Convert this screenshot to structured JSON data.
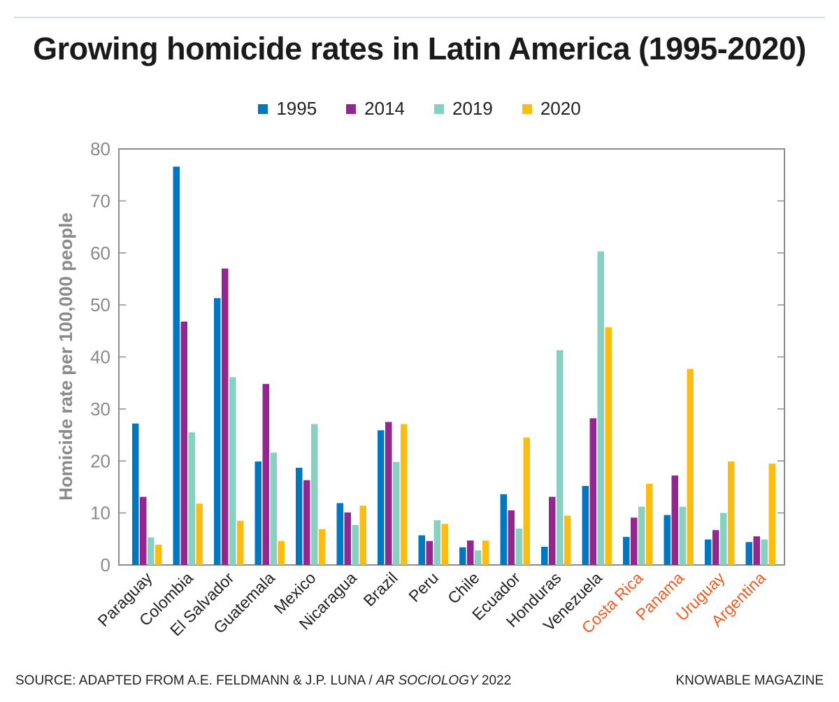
{
  "title": "Growing homicide rates in Latin America (1995-2020)",
  "footer": {
    "source_prefix": "SOURCE: ADAPTED FROM A.E. FELDMANN & J.P. LUNA / ",
    "source_journal": "AR SOCIOLOGY",
    "source_year": " 2022",
    "credit": "KNOWABLE MAGAZINE"
  },
  "colors": {
    "1995": "#0077c0",
    "2014": "#92278f",
    "2019": "#88d0c2",
    "2020": "#fdbd10",
    "highlight_label": "#f05a22",
    "axis_text": "#8a8a8a"
  },
  "chart_data": {
    "type": "bar",
    "title": "Growing homicide rates in Latin America (1995-2020)",
    "xlabel": "",
    "ylabel": "Homicide rate per 100,000 people",
    "ylim": [
      0,
      80
    ],
    "yticks": [
      0,
      10,
      20,
      30,
      40,
      50,
      60,
      70,
      80
    ],
    "grid": false,
    "legend_position": "top-center",
    "categories": [
      "Paraguay",
      "Colombia",
      "El Salvador",
      "Guatemala",
      "Mexico",
      "Nicaragua",
      "Brazil",
      "Peru",
      "Chile",
      "Ecuador",
      "Honduras",
      "Venezuela",
      "Costa Rica",
      "Panama",
      "Uruguay",
      "Argentina"
    ],
    "highlighted_categories": [
      "Costa Rica",
      "Panama",
      "Uruguay",
      "Argentina"
    ],
    "series": [
      {
        "name": "1995",
        "values": [
          27.2,
          76.6,
          51.3,
          19.9,
          18.7,
          11.9,
          25.9,
          5.7,
          3.4,
          13.6,
          3.5,
          15.2,
          5.4,
          9.6,
          4.9,
          4.4
        ]
      },
      {
        "name": "2014",
        "values": [
          13.1,
          46.8,
          57.0,
          34.8,
          16.3,
          10.1,
          27.5,
          4.6,
          4.7,
          10.5,
          13.1,
          28.2,
          9.1,
          17.2,
          6.7,
          5.5
        ]
      },
      {
        "name": "2019",
        "values": [
          5.3,
          25.5,
          36.1,
          21.6,
          27.1,
          7.7,
          19.8,
          8.6,
          2.8,
          7.0,
          41.3,
          60.3,
          11.2,
          11.2,
          10.0,
          4.9
        ]
      },
      {
        "name": "2020",
        "values": [
          3.9,
          11.8,
          8.5,
          4.6,
          6.9,
          11.4,
          27.1,
          7.9,
          4.7,
          24.5,
          9.5,
          45.7,
          15.6,
          37.7,
          19.9,
          19.5
        ]
      }
    ]
  }
}
